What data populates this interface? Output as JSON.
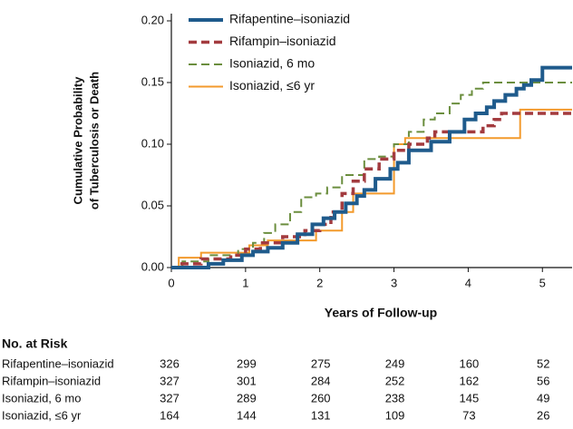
{
  "chart_data": {
    "type": "step",
    "y_label_lines": [
      "Cumulative Probability",
      "of Tuberculosis or Death"
    ],
    "x_label": "Years of Follow-up",
    "xlim": [
      0,
      5.4
    ],
    "xticks": [
      0,
      1,
      2,
      3,
      4,
      5
    ],
    "ylim": [
      0,
      0.2
    ],
    "yticks": [
      {
        "value": 0,
        "label": "0.00"
      },
      {
        "value": 0.05,
        "label": "0.05"
      },
      {
        "value": 0.1,
        "label": "0.10"
      },
      {
        "value": 0.15,
        "label": "0.15"
      },
      {
        "value": 0.2,
        "label": "0.20"
      }
    ],
    "legend": "upper left",
    "series": [
      {
        "name": "Rifapentine–isoniazid",
        "color": "#1f5b8c",
        "dash": "solid",
        "width": 4,
        "x": [
          0,
          0.5,
          0.7,
          0.95,
          1.1,
          1.3,
          1.5,
          1.7,
          1.9,
          2.05,
          2.2,
          2.35,
          2.5,
          2.6,
          2.75,
          2.95,
          3.05,
          3.2,
          3.5,
          3.75,
          3.95,
          4.1,
          4.25,
          4.35,
          4.5,
          4.65,
          4.75,
          4.85,
          5.0
        ],
        "values": [
          0,
          0.003,
          0.006,
          0.01,
          0.013,
          0.016,
          0.02,
          0.027,
          0.035,
          0.04,
          0.045,
          0.052,
          0.058,
          0.063,
          0.072,
          0.08,
          0.085,
          0.095,
          0.102,
          0.11,
          0.12,
          0.125,
          0.13,
          0.135,
          0.14,
          0.145,
          0.148,
          0.152,
          0.162
        ]
      },
      {
        "name": "Rifampin–isoniazid",
        "color": "#a33b3f",
        "dash": "dashed",
        "width": 3.5,
        "x": [
          0,
          0.1,
          0.4,
          0.8,
          1.0,
          1.2,
          1.5,
          1.8,
          2.0,
          2.15,
          2.3,
          2.45,
          2.6,
          2.8,
          3.0,
          3.2,
          3.45,
          3.55,
          4.2,
          4.35,
          4.45
        ],
        "values": [
          0,
          0.003,
          0.007,
          0.01,
          0.015,
          0.02,
          0.025,
          0.03,
          0.035,
          0.045,
          0.06,
          0.07,
          0.08,
          0.088,
          0.095,
          0.1,
          0.105,
          0.11,
          0.115,
          0.12,
          0.125
        ]
      },
      {
        "name": "Isoniazid, 6 mo",
        "color": "#6b8e3e",
        "dash": "dashed",
        "width": 2,
        "x": [
          0,
          0.15,
          0.5,
          0.9,
          1.1,
          1.25,
          1.4,
          1.6,
          1.75,
          1.95,
          2.1,
          2.3,
          2.6,
          2.8,
          3.0,
          3.2,
          3.4,
          3.55,
          3.75,
          3.9,
          4.05,
          4.2
        ],
        "values": [
          0,
          0.005,
          0.01,
          0.015,
          0.02,
          0.028,
          0.035,
          0.045,
          0.057,
          0.06,
          0.065,
          0.075,
          0.088,
          0.09,
          0.1,
          0.11,
          0.12,
          0.125,
          0.133,
          0.14,
          0.145,
          0.15
        ]
      },
      {
        "name": "Isoniazid, ≤6 yr",
        "color": "#f39a2c",
        "dash": "solid",
        "width": 2,
        "x": [
          0,
          0.1,
          0.4,
          1.05,
          1.3,
          1.95,
          2.3,
          2.45,
          3.0,
          3.15,
          4.7
        ],
        "values": [
          0,
          0.008,
          0.012,
          0.018,
          0.022,
          0.03,
          0.045,
          0.06,
          0.1,
          0.105,
          0.128
        ]
      }
    ]
  },
  "risk_table": {
    "title": "No. at Risk",
    "rows": [
      {
        "name": "Rifapentine–isoniazid",
        "values": [
          326,
          299,
          275,
          249,
          160,
          52
        ]
      },
      {
        "name": "Rifampin–isoniazid",
        "values": [
          327,
          301,
          284,
          252,
          162,
          56
        ]
      },
      {
        "name": "Isoniazid, 6 mo",
        "values": [
          327,
          289,
          260,
          238,
          145,
          49
        ]
      },
      {
        "name": "Isoniazid, ≤6 yr",
        "values": [
          164,
          144,
          131,
          109,
          73,
          26
        ]
      }
    ]
  }
}
